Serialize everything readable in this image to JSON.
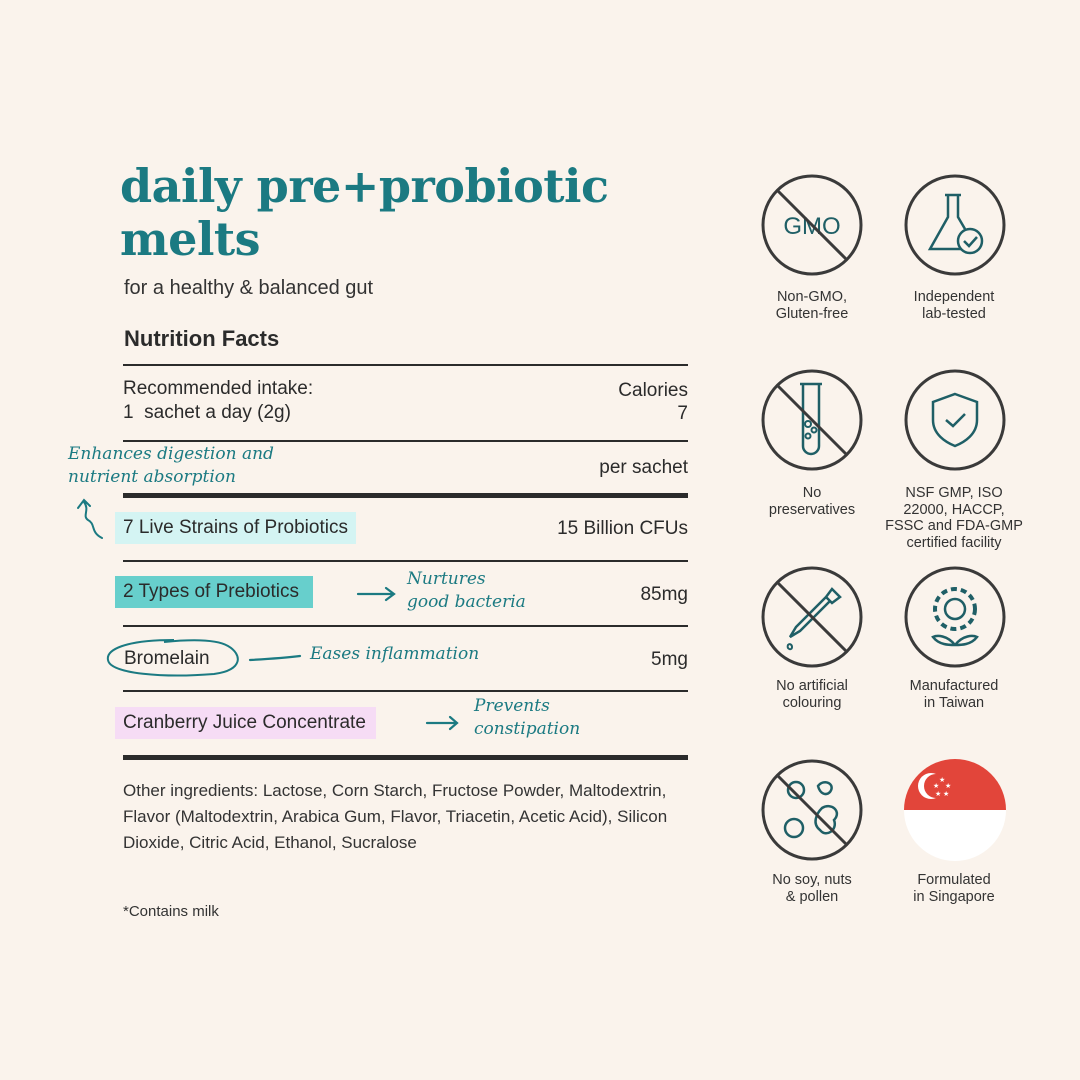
{
  "header": {
    "title_line1": "daily pre+probiotic",
    "title_line2": "melts",
    "subtitle": "for a healthy & balanced gut"
  },
  "nutrition": {
    "heading": "Nutrition Facts",
    "intake_label": "Recommended intake:",
    "intake_value": "1  sachet a day (2g)",
    "calories_label": "Calories",
    "calories_value": "7",
    "per_label": "per sachet",
    "rows": [
      {
        "name": "7 Live Strains of Probiotics",
        "amount": "15 Billion CFUs",
        "highlight": "#d4f4f3"
      },
      {
        "name": "2 Types of Prebiotics",
        "amount": "85mg",
        "highlight": "#67cfcc"
      },
      {
        "name": "Bromelain",
        "amount": "5mg",
        "highlight": "circle"
      },
      {
        "name": "Cranberry Juice Concentrate",
        "amount": "",
        "highlight": "#f6dcf5"
      }
    ],
    "other_ingredients": "Other ingredients: Lactose, Corn Starch, Fructose Powder, Maltodextrin, Flavor (Maltodextrin, Arabica Gum, Flavor, Triacetin, Acetic Acid), Silicon Dioxide, Citric Acid, Ethanol, Sucralose",
    "allergen_note": "*Contains milk"
  },
  "annotations": {
    "probiotics": [
      "Enhances digestion and",
      "nutrient absorption"
    ],
    "prebiotics": [
      "Nurtures",
      "good bacteria"
    ],
    "bromelain": "Eases inflammation",
    "cranberry": [
      "Prevents",
      "constipation"
    ]
  },
  "badges": [
    {
      "icon": "no-gmo-icon",
      "icon_text": "GMO",
      "label": [
        "Non-GMO,",
        "Gluten-free"
      ]
    },
    {
      "icon": "lab-flask-check-icon",
      "label": [
        "Independent",
        "lab-tested"
      ]
    },
    {
      "icon": "no-preservatives-test-tube-icon",
      "label": [
        "No",
        "preservatives"
      ]
    },
    {
      "icon": "shield-check-icon",
      "label": [
        "NSF GMP, ISO",
        "22000, HACCP,",
        "FSSC and FDA-GMP",
        "certified facility"
      ]
    },
    {
      "icon": "no-dropper-icon",
      "label": [
        "No artificial",
        "colouring"
      ]
    },
    {
      "icon": "gear-plant-icon",
      "label": [
        "Manufactured",
        "in Taiwan"
      ]
    },
    {
      "icon": "no-soy-nuts-pollen-icon",
      "label": [
        "No soy, nuts",
        "& pollen"
      ]
    },
    {
      "icon": "singapore-flag-icon",
      "label": [
        "Formulated",
        "in Singapore"
      ]
    }
  ],
  "colors": {
    "accent": "#1b7a82",
    "icon_stroke": "#3a3a3a",
    "icon_teal": "#1f5f66",
    "flag_red": "#e2453a",
    "background": "#faf3ec"
  }
}
